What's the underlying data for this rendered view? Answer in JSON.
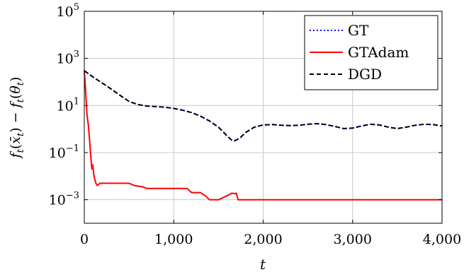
{
  "chart_data": {
    "type": "line",
    "title": "",
    "xlabel": "t",
    "ylabel": "f_t(x̄_t) − f_t(θ_t)",
    "ylabel_display": {
      "f": "f",
      "t": "t",
      "xbar": "x̄",
      "theta": "θ",
      "minus": "−"
    },
    "xlim": [
      0,
      4000
    ],
    "ylim_log10": [
      -4,
      5
    ],
    "yscale": "log",
    "grid": true,
    "legend_position": "top-right",
    "xticks": [
      {
        "value": 0,
        "label": "0"
      },
      {
        "value": 1000,
        "label": "1,000"
      },
      {
        "value": 2000,
        "label": "2,000"
      },
      {
        "value": 3000,
        "label": "3,000"
      },
      {
        "value": 4000,
        "label": "4,000"
      }
    ],
    "yticks": [
      {
        "value_log10": -3,
        "base": "10",
        "exp": "−3"
      },
      {
        "value_log10": -1,
        "base": "10",
        "exp": "−1"
      },
      {
        "value_log10": 1,
        "base": "10",
        "exp": "1"
      },
      {
        "value_log10": 3,
        "base": "10",
        "exp": "3"
      },
      {
        "value_log10": 5,
        "base": "10",
        "exp": "5"
      }
    ],
    "series": [
      {
        "name": "GT",
        "color": "#0000ff",
        "style": "dotted",
        "x": [
          0,
          100,
          200,
          300,
          400,
          500,
          600,
          700,
          800,
          900,
          1000,
          1100,
          1200,
          1300,
          1400,
          1500,
          1600,
          1650,
          1680,
          1700,
          1750,
          1800,
          1900,
          2000,
          2100,
          2200,
          2300,
          2400,
          2500,
          2600,
          2700,
          2800,
          2900,
          3000,
          3100,
          3200,
          3300,
          3400,
          3500,
          3600,
          3700,
          3800,
          3900,
          4000
        ],
        "y": [
          300,
          160,
          90,
          50,
          27,
          15,
          11,
          9.5,
          9,
          8.5,
          7.5,
          6.3,
          5,
          3.5,
          2.2,
          1.2,
          0.5,
          0.33,
          0.32,
          0.34,
          0.45,
          0.7,
          1.2,
          1.5,
          1.55,
          1.45,
          1.4,
          1.45,
          1.6,
          1.7,
          1.55,
          1.3,
          1.05,
          1.1,
          1.35,
          1.6,
          1.5,
          1.2,
          1.05,
          1.2,
          1.45,
          1.6,
          1.55,
          1.35
        ]
      },
      {
        "name": "GTAdam",
        "color": "#ff0000",
        "style": "solid",
        "x": [
          0,
          15,
          30,
          45,
          60,
          75,
          85,
          95,
          105,
          115,
          130,
          145,
          160,
          175,
          200,
          300,
          400,
          500,
          560,
          650,
          700,
          800,
          900,
          1000,
          1100,
          1150,
          1200,
          1250,
          1300,
          1350,
          1400,
          1500,
          1600,
          1650,
          1680,
          1700,
          1720,
          1760,
          1800,
          2000,
          2500,
          3000,
          3500,
          4000
        ],
        "y": [
          300,
          40,
          4,
          1.5,
          0.3,
          0.05,
          0.02,
          0.03,
          0.012,
          0.008,
          0.005,
          0.004,
          0.0045,
          0.005,
          0.005,
          0.005,
          0.005,
          0.005,
          0.004,
          0.0035,
          0.003,
          0.003,
          0.003,
          0.003,
          0.003,
          0.003,
          0.002,
          0.002,
          0.002,
          0.0015,
          0.001,
          0.001,
          0.0015,
          0.0019,
          0.0018,
          0.0019,
          0.001,
          0.001,
          0.001,
          0.001,
          0.001,
          0.001,
          0.001,
          0.001
        ]
      },
      {
        "name": "DGD",
        "color": "#000000",
        "style": "dashed",
        "x": [
          0,
          100,
          200,
          300,
          400,
          500,
          600,
          700,
          800,
          900,
          1000,
          1100,
          1200,
          1300,
          1400,
          1500,
          1600,
          1650,
          1680,
          1700,
          1750,
          1800,
          1900,
          2000,
          2100,
          2200,
          2300,
          2400,
          2500,
          2600,
          2700,
          2800,
          2900,
          3000,
          3100,
          3200,
          3300,
          3400,
          3500,
          3600,
          3700,
          3800,
          3900,
          4000
        ],
        "y": [
          300,
          160,
          90,
          50,
          27,
          15,
          11,
          9.5,
          9,
          8.5,
          7.5,
          6.3,
          5,
          3.5,
          2.2,
          1.2,
          0.5,
          0.33,
          0.32,
          0.34,
          0.45,
          0.7,
          1.2,
          1.5,
          1.55,
          1.45,
          1.4,
          1.45,
          1.6,
          1.7,
          1.55,
          1.3,
          1.05,
          1.1,
          1.35,
          1.6,
          1.5,
          1.2,
          1.05,
          1.2,
          1.45,
          1.6,
          1.55,
          1.35
        ]
      }
    ]
  }
}
